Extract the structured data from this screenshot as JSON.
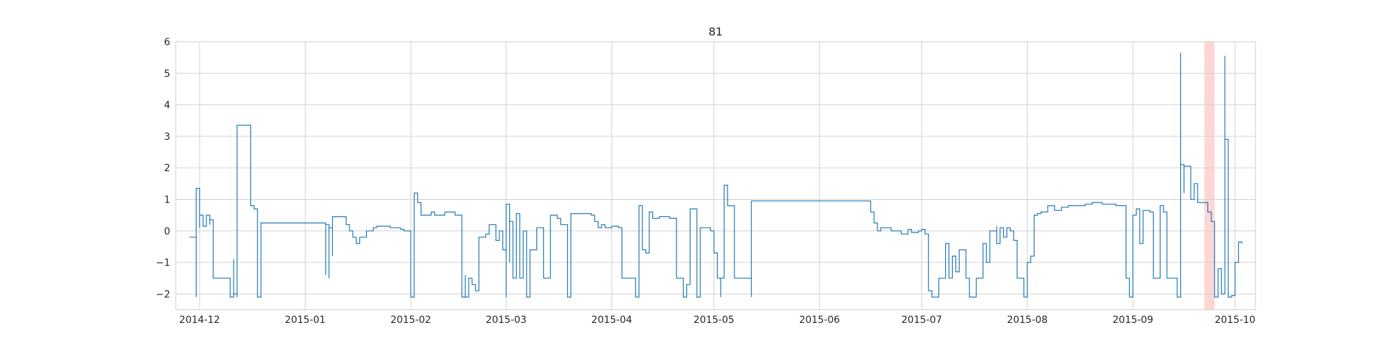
{
  "chart_data": {
    "type": "line",
    "title": "81",
    "xlabel": "",
    "ylabel": "",
    "x_axis": "date",
    "xlim": [
      "2014-11-24",
      "2015-10-07"
    ],
    "ylim": [
      -2.5,
      6.0
    ],
    "grid": true,
    "legend": "none",
    "xticks": [
      "2014-12",
      "2015-01",
      "2015-02",
      "2015-03",
      "2015-04",
      "2015-05",
      "2015-06",
      "2015-07",
      "2015-08",
      "2015-09",
      "2015-10"
    ],
    "xtick_dates": [
      "2014-12-01",
      "2015-01-01",
      "2015-02-01",
      "2015-03-01",
      "2015-04-01",
      "2015-05-01",
      "2015-06-01",
      "2015-07-01",
      "2015-08-01",
      "2015-09-01",
      "2015-10-01"
    ],
    "yticks": [
      -2,
      -1,
      0,
      1,
      2,
      3,
      4,
      5,
      6
    ],
    "ytick_labels": [
      "−2",
      "−1",
      "0",
      "1",
      "2",
      "3",
      "4",
      "5",
      "6"
    ],
    "highlight": {
      "start": "2015-09-22",
      "end": "2015-09-25",
      "color": "#ffd6d6"
    },
    "series": [
      {
        "color": "#1f77b4",
        "step": true,
        "points": [
          [
            "2014-11-28",
            -0.2
          ],
          [
            "2014-11-30",
            -0.2
          ],
          [
            "2014-11-30",
            -2.1
          ],
          [
            "2014-11-30",
            1.35
          ],
          [
            "2014-12-01",
            1.2
          ],
          [
            "2014-12-01",
            0.1
          ],
          [
            "2014-12-01",
            0.5
          ],
          [
            "2014-12-02",
            0.15
          ],
          [
            "2014-12-03",
            0.5
          ],
          [
            "2014-12-04",
            0.2
          ],
          [
            "2014-12-04",
            0.35
          ],
          [
            "2014-12-05",
            0.0
          ],
          [
            "2014-12-05",
            -1.5
          ],
          [
            "2014-12-10",
            -1.5
          ],
          [
            "2014-12-10",
            -2.1
          ],
          [
            "2014-12-11",
            -0.9
          ],
          [
            "2014-12-11",
            -2.0
          ],
          [
            "2014-12-12",
            -1.0
          ],
          [
            "2014-12-12",
            -1.5
          ],
          [
            "2014-12-12",
            -2.1
          ],
          [
            "2014-12-12",
            3.35
          ],
          [
            "2014-12-16",
            3.35
          ],
          [
            "2014-12-16",
            0.8
          ],
          [
            "2014-12-17",
            0.7
          ],
          [
            "2014-12-18",
            -1.5
          ],
          [
            "2014-12-18",
            -2.1
          ],
          [
            "2014-12-19",
            -2.0
          ],
          [
            "2014-12-19",
            0.25
          ],
          [
            "2015-01-07",
            0.25
          ],
          [
            "2015-01-07",
            -1.4
          ],
          [
            "2015-01-07",
            0.2
          ],
          [
            "2015-01-08",
            -1.5
          ],
          [
            "2015-01-08",
            0.1
          ],
          [
            "2015-01-09",
            -0.8
          ],
          [
            "2015-01-09",
            0.45
          ],
          [
            "2015-01-13",
            0.45
          ],
          [
            "2015-01-13",
            0.2
          ],
          [
            "2015-01-14",
            0.0
          ],
          [
            "2015-01-15",
            -0.2
          ],
          [
            "2015-01-16",
            -0.4
          ],
          [
            "2015-01-17",
            -0.2
          ],
          [
            "2015-01-19",
            0.0
          ],
          [
            "2015-01-21",
            0.1
          ],
          [
            "2015-01-22",
            0.15
          ],
          [
            "2015-01-26",
            0.1
          ],
          [
            "2015-01-29",
            0.05
          ],
          [
            "2015-01-30",
            0.0
          ],
          [
            "2015-02-01",
            -2.1
          ],
          [
            "2015-02-02",
            -0.7
          ],
          [
            "2015-02-02",
            1.2
          ],
          [
            "2015-02-03",
            0.9
          ],
          [
            "2015-02-04",
            0.5
          ],
          [
            "2015-02-07",
            0.6
          ],
          [
            "2015-02-08",
            0.5
          ],
          [
            "2015-02-11",
            0.6
          ],
          [
            "2015-02-14",
            0.5
          ],
          [
            "2015-02-16",
            0.3
          ],
          [
            "2015-02-16",
            -2.1
          ],
          [
            "2015-02-17",
            -1.4
          ],
          [
            "2015-02-17",
            -2.1
          ],
          [
            "2015-02-18",
            -1.5
          ],
          [
            "2015-02-19",
            -1.7
          ],
          [
            "2015-02-20",
            -1.9
          ],
          [
            "2015-02-21",
            -0.2
          ],
          [
            "2015-02-23",
            -0.1
          ],
          [
            "2015-02-24",
            0.2
          ],
          [
            "2015-02-26",
            -0.3
          ],
          [
            "2015-02-27",
            0.0
          ],
          [
            "2015-02-28",
            -0.6
          ],
          [
            "2015-03-01",
            -2.1
          ],
          [
            "2015-03-01",
            0.85
          ],
          [
            "2015-03-02",
            -1.0
          ],
          [
            "2015-03-02",
            0.3
          ],
          [
            "2015-03-03",
            -1.5
          ],
          [
            "2015-03-04",
            0.55
          ],
          [
            "2015-03-05",
            -1.5
          ],
          [
            "2015-03-06",
            0.0
          ],
          [
            "2015-03-07",
            -2.1
          ],
          [
            "2015-03-08",
            -0.6
          ],
          [
            "2015-03-09",
            -0.6
          ],
          [
            "2015-03-10",
            0.1
          ],
          [
            "2015-03-12",
            -1.5
          ],
          [
            "2015-03-14",
            0.5
          ],
          [
            "2015-03-16",
            0.4
          ],
          [
            "2015-03-17",
            0.2
          ],
          [
            "2015-03-19",
            -2.1
          ],
          [
            "2015-03-20",
            0.55
          ],
          [
            "2015-03-26",
            0.5
          ],
          [
            "2015-03-27",
            0.3
          ],
          [
            "2015-03-28",
            0.1
          ],
          [
            "2015-03-29",
            0.2
          ],
          [
            "2015-03-30",
            0.1
          ],
          [
            "2015-04-01",
            0.15
          ],
          [
            "2015-04-03",
            0.1
          ],
          [
            "2015-04-04",
            -1.5
          ],
          [
            "2015-04-08",
            -1.5
          ],
          [
            "2015-04-08",
            -2.1
          ],
          [
            "2015-04-09",
            -1.8
          ],
          [
            "2015-04-09",
            0.8
          ],
          [
            "2015-04-10",
            -0.6
          ],
          [
            "2015-04-11",
            -0.7
          ],
          [
            "2015-04-12",
            0.6
          ],
          [
            "2015-04-13",
            0.4
          ],
          [
            "2015-04-15",
            0.45
          ],
          [
            "2015-04-18",
            0.4
          ],
          [
            "2015-04-20",
            -1.5
          ],
          [
            "2015-04-22",
            -1.7
          ],
          [
            "2015-04-22",
            -2.1
          ],
          [
            "2015-04-23",
            -1.7
          ],
          [
            "2015-04-24",
            0.7
          ],
          [
            "2015-04-26",
            0.65
          ],
          [
            "2015-04-26",
            -2.1
          ],
          [
            "2015-04-27",
            0.1
          ],
          [
            "2015-04-30",
            0.0
          ],
          [
            "2015-05-01",
            -0.7
          ],
          [
            "2015-05-02",
            -1.5
          ],
          [
            "2015-05-03",
            -2.1
          ],
          [
            "2015-05-03",
            -1.5
          ],
          [
            "2015-05-04",
            1.45
          ],
          [
            "2015-05-05",
            0.8
          ],
          [
            "2015-05-07",
            -1.5
          ],
          [
            "2015-05-10",
            -1.5
          ],
          [
            "2015-05-12",
            -2.1
          ],
          [
            "2015-05-12",
            0.15
          ],
          [
            "2015-05-12",
            0.95
          ],
          [
            "2015-05-17",
            0.95
          ],
          [
            "2015-06-16",
            0.6
          ],
          [
            "2015-06-17",
            0.25
          ],
          [
            "2015-06-18",
            0.0
          ],
          [
            "2015-06-19",
            0.1
          ],
          [
            "2015-06-22",
            0.0
          ],
          [
            "2015-06-25",
            -0.1
          ],
          [
            "2015-06-27",
            0.05
          ],
          [
            "2015-06-28",
            -0.05
          ],
          [
            "2015-06-30",
            0.0
          ],
          [
            "2015-07-01",
            0.05
          ],
          [
            "2015-07-02",
            -0.1
          ],
          [
            "2015-07-03",
            -1.9
          ],
          [
            "2015-07-04",
            -2.1
          ],
          [
            "2015-07-06",
            -1.5
          ],
          [
            "2015-07-07",
            -1.5
          ],
          [
            "2015-07-08",
            -0.4
          ],
          [
            "2015-07-09",
            -1.5
          ],
          [
            "2015-07-10",
            -0.8
          ],
          [
            "2015-07-11",
            -1.3
          ],
          [
            "2015-07-12",
            -0.6
          ],
          [
            "2015-07-14",
            -1.5
          ],
          [
            "2015-07-15",
            -2.1
          ],
          [
            "2015-07-17",
            -1.5
          ],
          [
            "2015-07-18",
            -1.5
          ],
          [
            "2015-07-19",
            -0.4
          ],
          [
            "2015-07-20",
            -1.0
          ],
          [
            "2015-07-21",
            0.0
          ],
          [
            "2015-07-23",
            0.15
          ],
          [
            "2015-07-23",
            -0.4
          ],
          [
            "2015-07-24",
            0.1
          ],
          [
            "2015-07-25",
            -0.2
          ],
          [
            "2015-07-26",
            0.1
          ],
          [
            "2015-07-27",
            0.0
          ],
          [
            "2015-07-28",
            -0.3
          ],
          [
            "2015-07-29",
            -1.5
          ],
          [
            "2015-07-31",
            -2.1
          ],
          [
            "2015-08-01",
            -1.0
          ],
          [
            "2015-08-02",
            -0.8
          ],
          [
            "2015-08-03",
            0.5
          ],
          [
            "2015-08-04",
            0.55
          ],
          [
            "2015-08-05",
            0.6
          ],
          [
            "2015-08-07",
            0.8
          ],
          [
            "2015-08-09",
            0.65
          ],
          [
            "2015-08-11",
            0.75
          ],
          [
            "2015-08-13",
            0.8
          ],
          [
            "2015-08-15",
            0.8
          ],
          [
            "2015-08-18",
            0.85
          ],
          [
            "2015-08-20",
            0.9
          ],
          [
            "2015-08-23",
            0.85
          ],
          [
            "2015-08-27",
            0.8
          ],
          [
            "2015-08-30",
            0.75
          ],
          [
            "2015-08-30",
            -1.5
          ],
          [
            "2015-08-31",
            -2.1
          ],
          [
            "2015-09-01",
            0.5
          ],
          [
            "2015-09-02",
            0.7
          ],
          [
            "2015-09-03",
            -0.4
          ],
          [
            "2015-09-04",
            0.65
          ],
          [
            "2015-09-06",
            0.6
          ],
          [
            "2015-09-07",
            -1.5
          ],
          [
            "2015-09-08",
            -1.5
          ],
          [
            "2015-09-09",
            0.8
          ],
          [
            "2015-09-10",
            0.6
          ],
          [
            "2015-09-11",
            -1.5
          ],
          [
            "2015-09-14",
            -1.5
          ],
          [
            "2015-09-14",
            -2.1
          ],
          [
            "2015-09-15",
            5.65
          ],
          [
            "2015-09-15",
            2.1
          ],
          [
            "2015-09-16",
            1.2
          ],
          [
            "2015-09-16",
            2.05
          ],
          [
            "2015-09-18",
            2.05
          ],
          [
            "2015-09-18",
            1.0
          ],
          [
            "2015-09-19",
            1.5
          ],
          [
            "2015-09-20",
            0.9
          ],
          [
            "2015-09-23",
            0.6
          ],
          [
            "2015-09-24",
            0.3
          ],
          [
            "2015-09-25",
            -2.1
          ],
          [
            "2015-09-26",
            -1.2
          ],
          [
            "2015-09-27",
            -2.0
          ],
          [
            "2015-09-28",
            5.55
          ],
          [
            "2015-09-28",
            2.9
          ],
          [
            "2015-09-29",
            1.8
          ],
          [
            "2015-09-29",
            -2.1
          ],
          [
            "2015-09-30",
            -2.05
          ],
          [
            "2015-10-01",
            -2.05
          ],
          [
            "2015-10-01",
            -1.0
          ],
          [
            "2015-10-02",
            -0.8
          ],
          [
            "2015-10-02",
            -0.35
          ],
          [
            "2015-10-03",
            -0.4
          ]
        ]
      }
    ]
  }
}
